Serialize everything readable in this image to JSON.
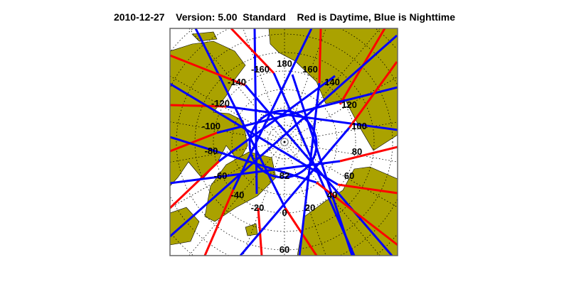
{
  "title": {
    "date": "2010-12-27",
    "version": "Version: 5.00",
    "mode": "Standard",
    "legend_text": "Red is Daytime, Blue is Nighttime"
  },
  "map": {
    "projection": "north polar stereographic",
    "longitude_labels": [
      "180",
      "160",
      "140",
      "120",
      "100",
      "80",
      "60",
      "40",
      "20",
      "0",
      "-20",
      "-40",
      "-60",
      "-80",
      "-100",
      "-120",
      "-140",
      "-160"
    ],
    "latitude_labels": [
      "82",
      "60"
    ],
    "colors": {
      "land": "#aaa200",
      "ocean": "#ffffff",
      "daytime": "#ff0000",
      "nighttime": "#0000ff",
      "grid": "#000000"
    }
  }
}
